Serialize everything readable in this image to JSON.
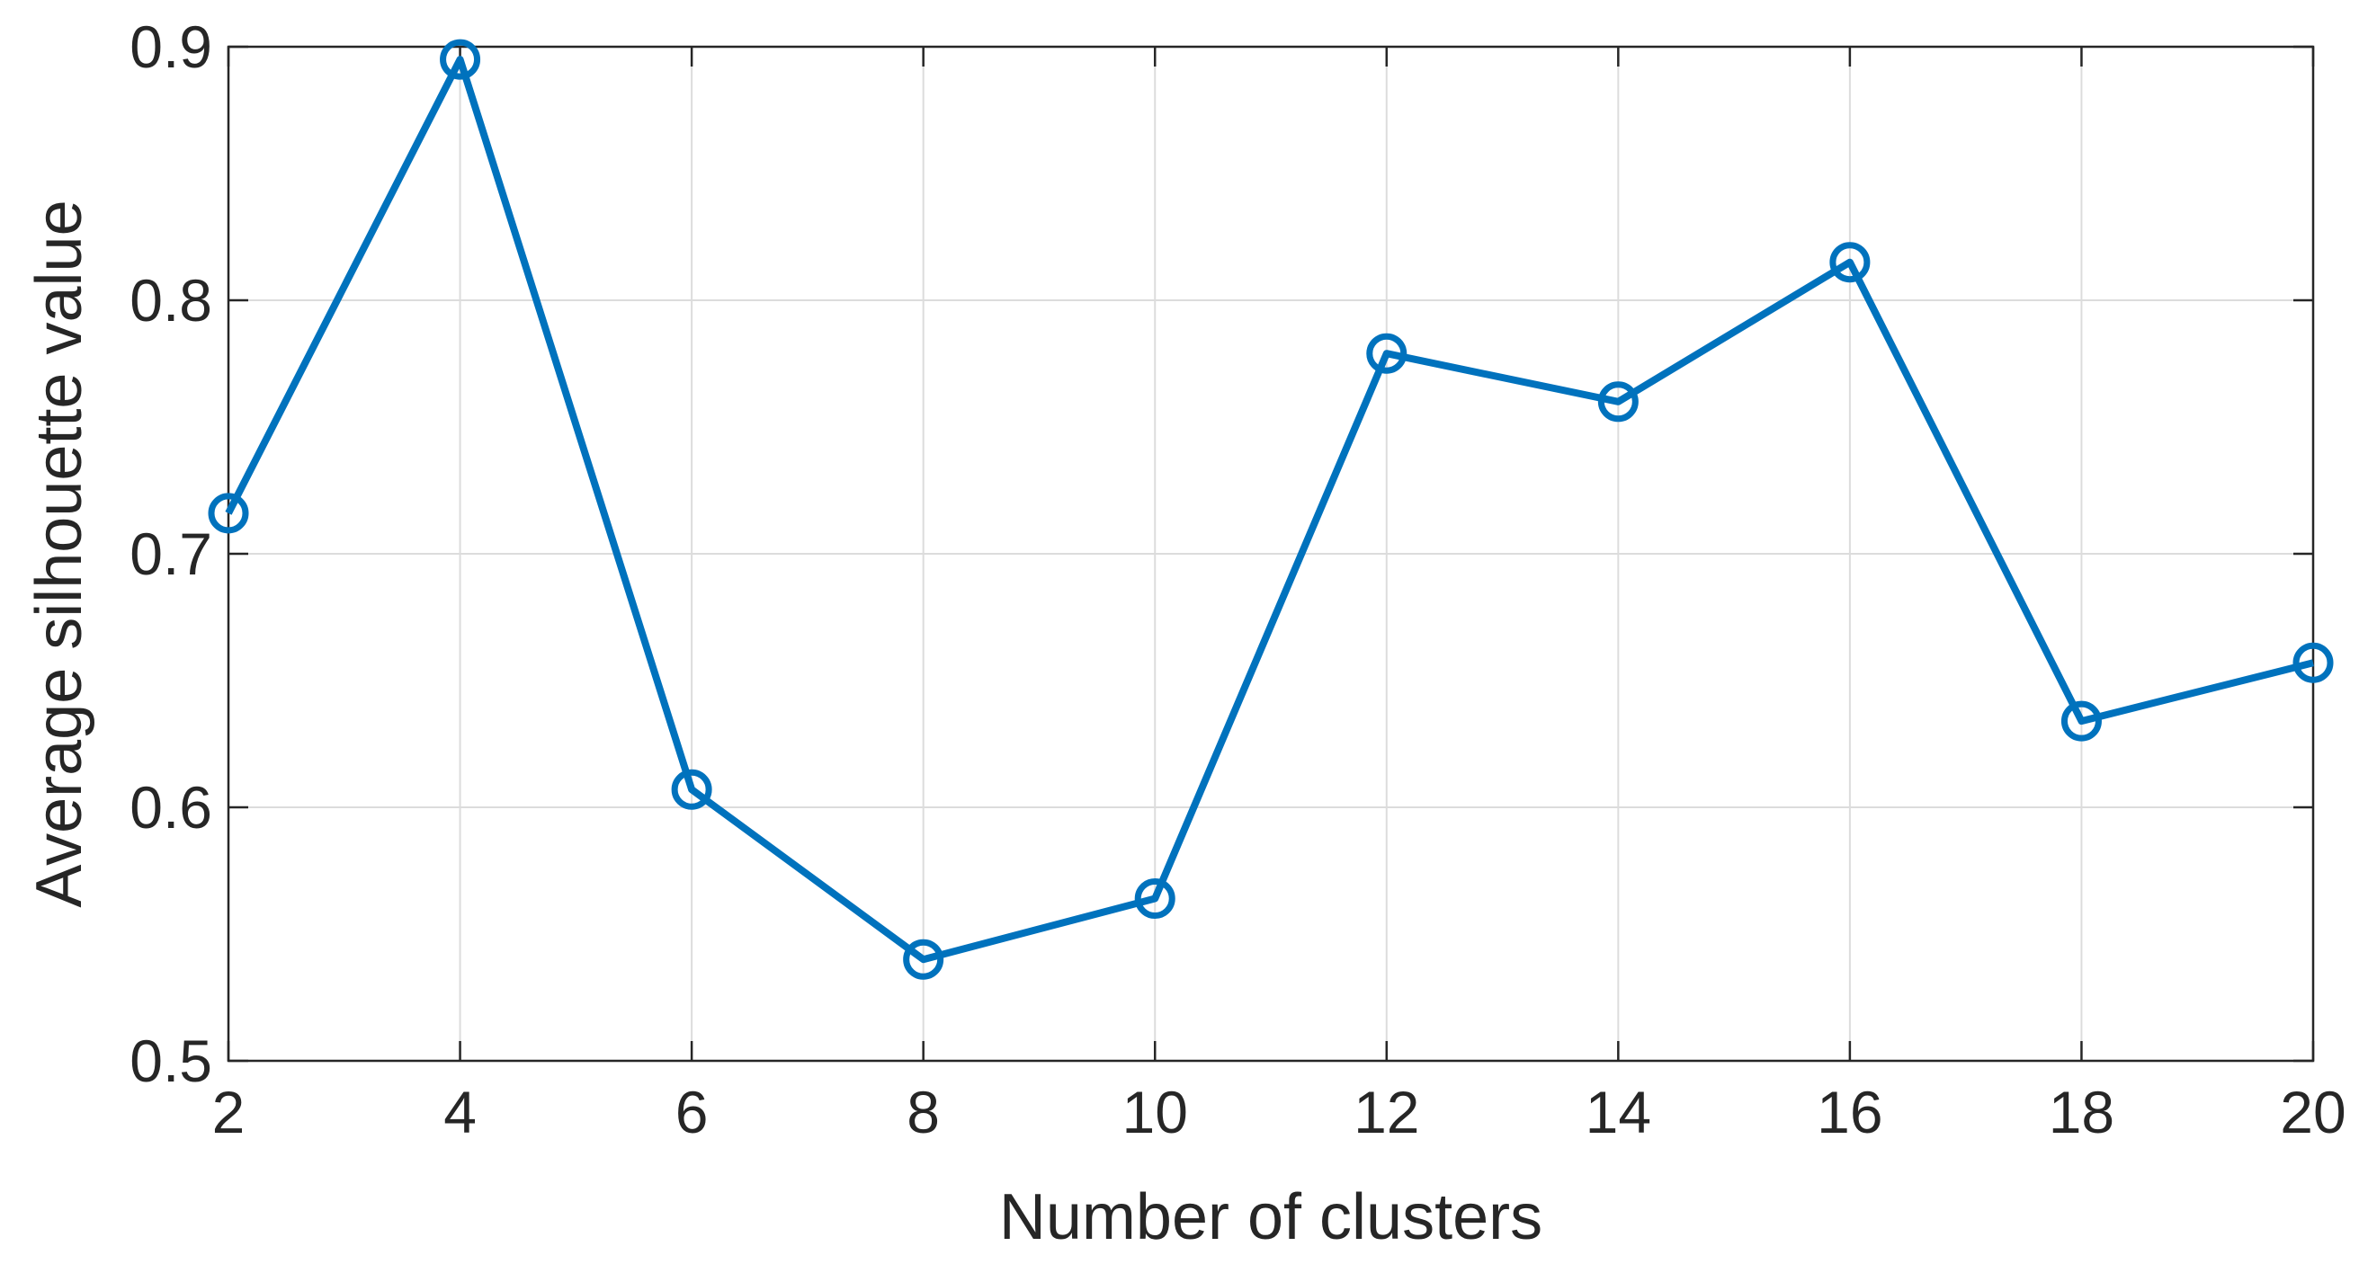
{
  "chart_data": {
    "type": "line",
    "x": [
      2,
      4,
      6,
      8,
      10,
      12,
      14,
      16,
      18,
      20
    ],
    "series": [
      {
        "color": "#0072bd",
        "marker": "o",
        "values": [
          0.716,
          0.895,
          0.607,
          0.54,
          0.564,
          0.779,
          0.76,
          0.815,
          0.634,
          0.657
        ]
      }
    ],
    "xlabel": "Number of clusters",
    "ylabel": "Average silhouette value",
    "xlim": [
      2,
      20
    ],
    "xticks": [
      2,
      4,
      6,
      8,
      10,
      12,
      14,
      16,
      18,
      20
    ],
    "ylim": [
      0.5,
      0.9
    ],
    "yticks": [
      0.5,
      0.6,
      0.7,
      0.8,
      0.9
    ],
    "grid": true
  }
}
